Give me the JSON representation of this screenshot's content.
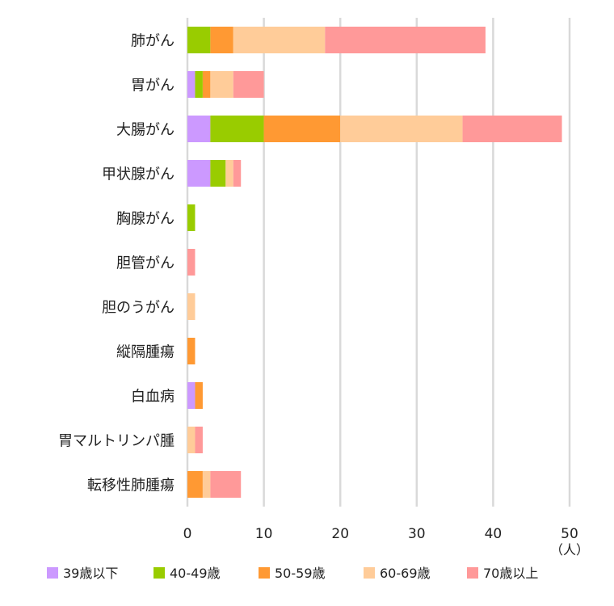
{
  "chart_data": {
    "type": "bar",
    "orientation": "horizontal",
    "stacked": true,
    "categories": [
      "肺がん",
      "胃がん",
      "大腸がん",
      "甲状腺がん",
      "胸腺がん",
      "胆管がん",
      "胆のうがん",
      "縦隔腫瘍",
      "白血病",
      "胃マルトリンパ腫",
      "転移性肺腫瘍"
    ],
    "series": [
      {
        "name": "39歳以下",
        "color": "#cc99ff",
        "values": [
          0,
          1,
          3,
          3,
          0,
          0,
          0,
          0,
          1,
          0,
          0
        ]
      },
      {
        "name": "40-49歳",
        "color": "#99cc00",
        "values": [
          3,
          1,
          7,
          2,
          1,
          0,
          0,
          0,
          0,
          0,
          0
        ]
      },
      {
        "name": "50-59歳",
        "color": "#ff9933",
        "values": [
          3,
          1,
          10,
          0,
          0,
          0,
          0,
          1,
          1,
          0,
          2
        ]
      },
      {
        "name": "60-69歳",
        "color": "#ffcc99",
        "values": [
          12,
          3,
          16,
          1,
          0,
          0,
          1,
          0,
          0,
          1,
          1
        ]
      },
      {
        "name": "70歳以上",
        "color": "#ff9999",
        "values": [
          21,
          4,
          13,
          1,
          0,
          1,
          0,
          0,
          0,
          1,
          4
        ]
      }
    ],
    "xlim": [
      0,
      50
    ],
    "xticks": [
      0,
      10,
      20,
      30,
      40,
      50
    ],
    "xlabel": "（人）",
    "grid": true,
    "legend": "bottom"
  }
}
